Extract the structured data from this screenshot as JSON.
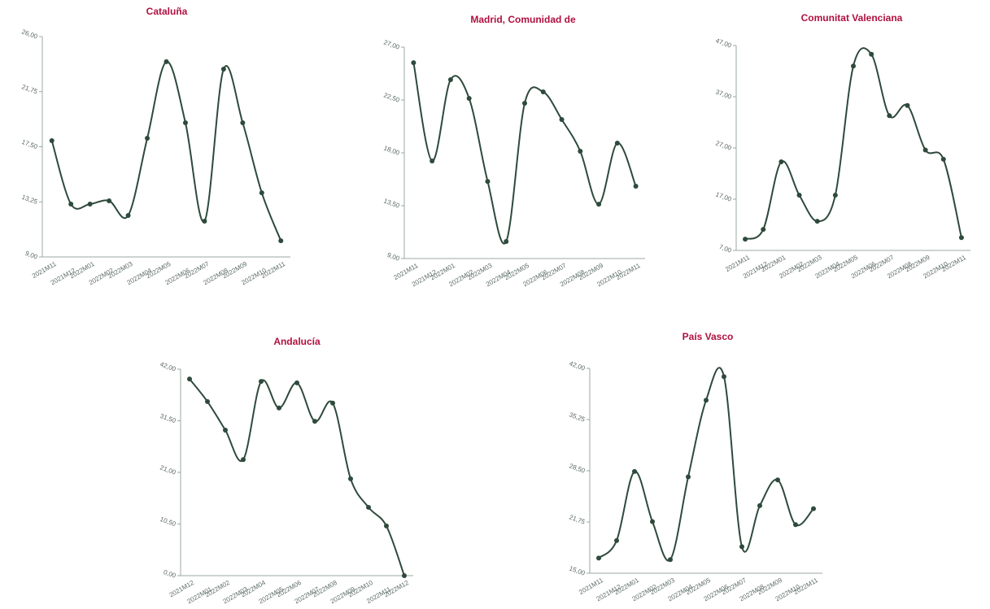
{
  "chart_data": [
    {
      "type": "line",
      "title": "Cataluña",
      "color": "#2e4a3c",
      "categories": [
        "2021M11",
        "2021M12",
        "2022M01",
        "2022M02",
        "2022M03",
        "2022M04",
        "2022M05",
        "2022M06",
        "2022M07",
        "2022M08",
        "2022M09",
        "2022M10",
        "2022M11"
      ],
      "values": [
        17.97,
        13.08,
        13.08,
        13.33,
        12.2,
        18.16,
        24.06,
        19.35,
        11.76,
        23.49,
        19.35,
        13.95,
        10.25
      ],
      "ylim": [
        9,
        26
      ],
      "yticks": [
        {
          "value": 9,
          "label": "9,00"
        },
        {
          "value": 13.25,
          "label": "13,25"
        },
        {
          "value": 17.5,
          "label": "17,50"
        },
        {
          "value": 21.75,
          "label": "21,75"
        },
        {
          "value": 26,
          "label": "26,00"
        }
      ]
    },
    {
      "type": "line",
      "title": "Madrid, Comunidad de",
      "color": "#2e4a3c",
      "categories": [
        "2021M11",
        "2021M12",
        "2022M01",
        "2022M02",
        "2022M03",
        "2022M04",
        "2022M05",
        "2022M06",
        "2022M07",
        "2022M08",
        "2022M09",
        "2022M10",
        "2022M11"
      ],
      "values": [
        25.68,
        17.31,
        24.23,
        22.64,
        15.57,
        10.45,
        22.22,
        23.19,
        20.84,
        18.14,
        13.63,
        18.83,
        15.16
      ],
      "ylim": [
        9,
        27
      ],
      "yticks": [
        {
          "value": 9,
          "label": "9,00"
        },
        {
          "value": 13.5,
          "label": "13,50"
        },
        {
          "value": 18,
          "label": "18,00"
        },
        {
          "value": 22.5,
          "label": "22,50"
        },
        {
          "value": 27,
          "label": "27,00"
        }
      ]
    },
    {
      "type": "line",
      "title": "Comunitat Valenciana",
      "color": "#2e4a3c",
      "categories": [
        "2021M11",
        "2021M12",
        "2022M01",
        "2022M02",
        "2022M03",
        "2022M04",
        "2022M05",
        "2022M06",
        "2022M07",
        "2022M08",
        "2022M09",
        "2022M10",
        "2022M11"
      ],
      "values": [
        9.2,
        11.1,
        24.3,
        17.8,
        12.7,
        17.8,
        43.0,
        45.3,
        33.3,
        35.3,
        26.6,
        24.8,
        9.5
      ],
      "ylim": [
        7,
        47
      ],
      "yticks": [
        {
          "value": 7,
          "label": "7,00"
        },
        {
          "value": 17,
          "label": "17,00"
        },
        {
          "value": 27,
          "label": "27,00"
        },
        {
          "value": 37,
          "label": "37,00"
        },
        {
          "value": 47,
          "label": "47,00"
        }
      ]
    },
    {
      "type": "line",
      "title": "Andalucía",
      "color": "#2e4a3c",
      "categories": [
        "2021M12",
        "2022M01",
        "2022M02",
        "2022M03",
        "2022M04",
        "2022M05",
        "2022M06",
        "2022M07",
        "2022M08",
        "2022M09",
        "2022M10",
        "2022M11",
        "2022M12"
      ],
      "values": [
        40.0,
        35.4,
        29.6,
        23.6,
        39.5,
        34.1,
        39.2,
        31.4,
        35.1,
        19.7,
        13.9,
        10.1,
        0
      ],
      "ylim": [
        0,
        42
      ],
      "yticks": [
        {
          "value": 0,
          "label": "0,00"
        },
        {
          "value": 10.5,
          "label": "10,50"
        },
        {
          "value": 21,
          "label": "21,00"
        },
        {
          "value": 31.5,
          "label": "31,50"
        },
        {
          "value": 42,
          "label": "42,00"
        }
      ]
    },
    {
      "type": "line",
      "title": "País Vasco",
      "color": "#2e4a3c",
      "categories": [
        "2021M11",
        "2021M12",
        "2022M01",
        "2022M02",
        "2022M03",
        "2022M04",
        "2022M05",
        "2022M06",
        "2022M07",
        "2022M08",
        "2022M09",
        "2022M10",
        "2022M11"
      ],
      "values": [
        17.0,
        19.3,
        28.4,
        21.8,
        16.8,
        27.7,
        37.8,
        40.9,
        18.5,
        23.9,
        27.3,
        21.4,
        23.5
      ],
      "ylim": [
        15,
        42
      ],
      "yticks": [
        {
          "value": 15,
          "label": "15,00"
        },
        {
          "value": 21.75,
          "label": "21,75"
        },
        {
          "value": 28.5,
          "label": "28,50"
        },
        {
          "value": 35.25,
          "label": "35,25"
        },
        {
          "value": 42,
          "label": "42,00"
        }
      ]
    }
  ]
}
